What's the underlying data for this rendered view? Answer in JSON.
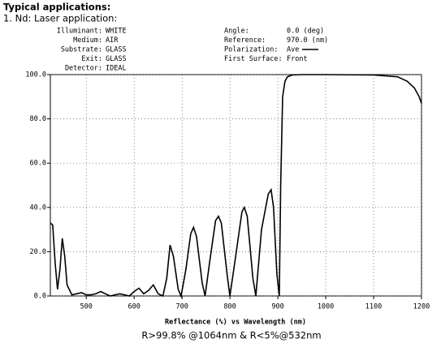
{
  "header": {
    "title": "Typical applications:",
    "subtitle": "1. Nd: Laser application:"
  },
  "chart_data": {
    "type": "line",
    "info_left": [
      {
        "label": "Illuminant:",
        "value": "WHITE"
      },
      {
        "label": "Medium:",
        "value": "AIR"
      },
      {
        "label": "Substrate:",
        "value": "GLASS"
      },
      {
        "label": "Exit:",
        "value": "GLASS"
      },
      {
        "label": "Detector:",
        "value": "IDEAL"
      }
    ],
    "info_right": [
      {
        "label": "Angle:",
        "value": "0.0 (deg)"
      },
      {
        "label": "Reference:",
        "value": "970.0 (nm)"
      },
      {
        "label": "Polarization:",
        "value": "Ave"
      },
      {
        "label": "First Surface:",
        "value": "Front"
      }
    ],
    "x_label": "Reflectance (%)  vs  Wavelength (nm)",
    "caption": "R>99.8% @1064nm & R<5%@532nm",
    "xlim": [
      425,
      1200
    ],
    "xticks": [
      500,
      600,
      700,
      800,
      900,
      1000,
      1100,
      1200
    ],
    "ylim": [
      0,
      100
    ],
    "yticks": [
      {
        "value": 0,
        "label": "0.0"
      },
      {
        "value": 20,
        "label": "20.0"
      },
      {
        "value": 40,
        "label": "40.0"
      },
      {
        "value": 60,
        "label": "60.0"
      },
      {
        "value": 80,
        "label": "80.0"
      },
      {
        "value": 100,
        "label": "100.0"
      }
    ],
    "series": [
      {
        "name": "Ave",
        "color": "#000000",
        "x": [
          425,
          430,
          435,
          440,
          445,
          450,
          455,
          460,
          470,
          480,
          490,
          500,
          510,
          520,
          530,
          540,
          550,
          560,
          570,
          580,
          590,
          600,
          610,
          620,
          630,
          640,
          650,
          660,
          668,
          675,
          682,
          692,
          698,
          708,
          718,
          724,
          730,
          742,
          748,
          758,
          770,
          776,
          782,
          795,
          800,
          812,
          825,
          830,
          836,
          848,
          854,
          866,
          880,
          886,
          891,
          898,
          903,
          906,
          910,
          915,
          920,
          930,
          950,
          1000,
          1100,
          1150,
          1170,
          1185,
          1195,
          1200
        ],
        "values": [
          33,
          32,
          15,
          3,
          12,
          26,
          18,
          5,
          0.5,
          1,
          1.5,
          0.5,
          0.5,
          1,
          2,
          1,
          0,
          0.5,
          1,
          0.5,
          0,
          2,
          3.5,
          1,
          2.5,
          5,
          1,
          0,
          8,
          23,
          18,
          3,
          0,
          12,
          28,
          31,
          27,
          6,
          0,
          16,
          34,
          36,
          33,
          8,
          0,
          18,
          38,
          40,
          36,
          8,
          0,
          30,
          46,
          48,
          40,
          10,
          0,
          50,
          90,
          97,
          99,
          99.8,
          100,
          100,
          99.8,
          99,
          97,
          94,
          90,
          87
        ]
      }
    ]
  }
}
